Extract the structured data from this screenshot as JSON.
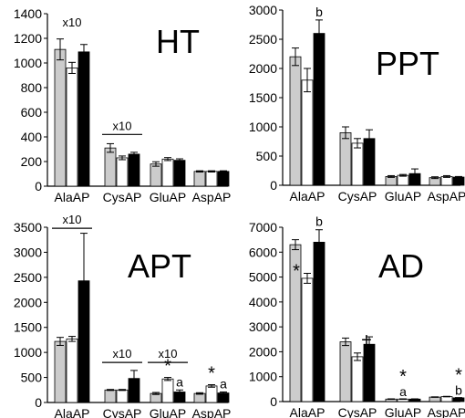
{
  "colors": {
    "g1": "#cccccc",
    "g2": "#ffffff",
    "g3": "#000000",
    "edge": "#000000"
  },
  "chart_data": [
    {
      "type": "bar",
      "title": "HT",
      "categories": [
        "AlaAP",
        "CysAP",
        "GluAP",
        "AspAP"
      ],
      "ylim": [
        0,
        1400
      ],
      "yticks": [
        0,
        200,
        400,
        600,
        800,
        1000,
        1200,
        1400
      ],
      "series": [
        {
          "values": [
            1110,
            310,
            180,
            120
          ],
          "errors": [
            85,
            35,
            18,
            5
          ]
        },
        {
          "values": [
            960,
            230,
            220,
            120
          ],
          "errors": [
            45,
            15,
            12,
            5
          ]
        },
        {
          "values": [
            1090,
            260,
            210,
            120
          ],
          "errors": [
            60,
            15,
            12,
            5
          ]
        }
      ],
      "annotations": [
        {
          "text": "x10",
          "cat": 0,
          "above": 1260,
          "bracket": false
        },
        {
          "text": "x10",
          "cat": 1,
          "above": 420,
          "bracket": true
        }
      ],
      "marks": []
    },
    {
      "type": "bar",
      "title": "PPT",
      "categories": [
        "AlaAP",
        "CysAP",
        "GluAP",
        "AspAP"
      ],
      "ylim": [
        0,
        3000
      ],
      "yticks": [
        0,
        500,
        1000,
        1500,
        2000,
        2500,
        3000
      ],
      "series": [
        {
          "values": [
            2200,
            900,
            150,
            130
          ],
          "errors": [
            150,
            100,
            15,
            15
          ]
        },
        {
          "values": [
            1800,
            720,
            170,
            150
          ],
          "errors": [
            200,
            80,
            15,
            15
          ]
        },
        {
          "values": [
            2600,
            800,
            200,
            140
          ],
          "errors": [
            230,
            150,
            80,
            10
          ]
        }
      ],
      "annotations": [],
      "marks": [
        {
          "text": "b",
          "cat": 0,
          "bar": 2,
          "kind": "letter"
        }
      ]
    },
    {
      "type": "bar",
      "title": "APT",
      "categories": [
        "AlaAP",
        "CysAP",
        "GluAP",
        "AspAP"
      ],
      "ylim": [
        0,
        3500
      ],
      "yticks": [
        0,
        500,
        1000,
        1500,
        2000,
        2500,
        3000,
        3500
      ],
      "series": [
        {
          "values": [
            1220,
            250,
            180,
            180
          ],
          "errors": [
            80,
            10,
            20,
            15
          ]
        },
        {
          "values": [
            1270,
            250,
            470,
            330
          ],
          "errors": [
            50,
            10,
            30,
            25
          ]
        },
        {
          "values": [
            2430,
            480,
            210,
            190
          ],
          "errors": [
            950,
            160,
            40,
            20
          ]
        }
      ],
      "annotations": [
        {
          "text": "x10",
          "cat": 0,
          "above": 3480,
          "bracket": true
        },
        {
          "text": "x10",
          "cat": 1,
          "above": 800,
          "bracket": true
        },
        {
          "text": "x10",
          "cat": 2,
          "above": 800,
          "bracket": true
        }
      ],
      "marks": [
        {
          "text": "*",
          "cat": 2,
          "bar": 1,
          "kind": "star"
        },
        {
          "text": "a",
          "cat": 2,
          "bar": 2,
          "kind": "letter"
        },
        {
          "text": "*",
          "cat": 3,
          "bar": 1,
          "kind": "star"
        },
        {
          "text": "a",
          "cat": 3,
          "bar": 2,
          "kind": "letter"
        }
      ]
    },
    {
      "type": "bar",
      "title": "AD",
      "categories": [
        "AlaAP",
        "CysAP",
        "GluAP",
        "AspAP"
      ],
      "ylim": [
        0,
        7000
      ],
      "yticks": [
        0,
        1000,
        2000,
        3000,
        4000,
        5000,
        6000,
        7000
      ],
      "series": [
        {
          "values": [
            6300,
            2400,
            100,
            180
          ],
          "errors": [
            200,
            150,
            10,
            10
          ]
        },
        {
          "values": [
            4950,
            1800,
            100,
            200
          ],
          "errors": [
            200,
            150,
            10,
            10
          ]
        },
        {
          "values": [
            6400,
            2300,
            100,
            150
          ],
          "errors": [
            500,
            300,
            10,
            10
          ]
        }
      ],
      "annotations": [],
      "marks": [
        {
          "text": "b",
          "cat": 0,
          "bar": 2,
          "kind": "letter"
        },
        {
          "text": "*",
          "cat": 0,
          "bar": 1,
          "kind": "star-left"
        },
        {
          "text": "+",
          "cat": 1,
          "bar": 1,
          "kind": "plus"
        },
        {
          "text": "*",
          "cat": 2,
          "bar": 1,
          "kind": "star-over"
        },
        {
          "text": "a",
          "cat": 2,
          "bar": 1,
          "kind": "letter-under"
        },
        {
          "text": "*",
          "cat": 3,
          "bar": 2,
          "kind": "star-over"
        },
        {
          "text": "b",
          "cat": 3,
          "bar": 2,
          "kind": "letter-under"
        }
      ]
    }
  ]
}
